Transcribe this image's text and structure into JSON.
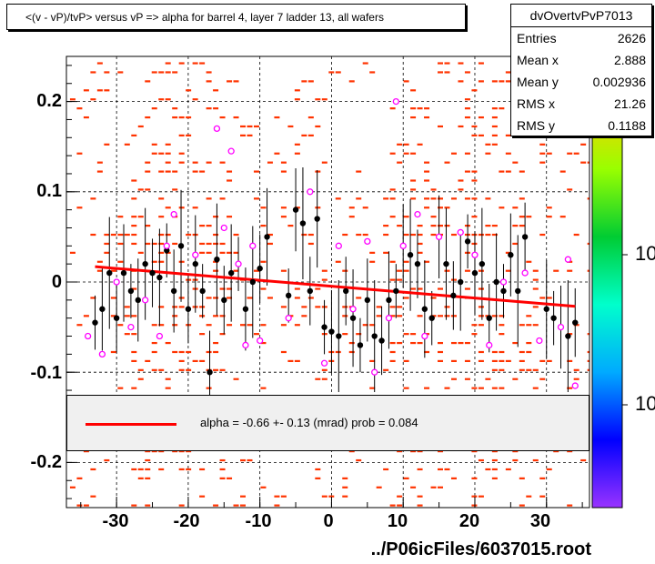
{
  "title": "<(v - vP)/tvP> versus   vP => alpha for barrel 4, layer 7 ladder 13, all wafers",
  "stats": {
    "name": "dvOvertvPvP7013",
    "rows": [
      {
        "label": "Entries",
        "value": "2626"
      },
      {
        "label": "Mean x",
        "value": "2.888"
      },
      {
        "label": "Mean y",
        "value": "0.002936"
      },
      {
        "label": "RMS x",
        "value": "21.26"
      },
      {
        "label": "RMS y",
        "value": "0.1188"
      }
    ]
  },
  "fit_legend": "alpha =   -0.66 +-  0.13 (mrad) prob = 0.084",
  "footer": "../P06icFiles/6037015.root",
  "colors": {
    "histogram": "#ff3300",
    "profile_markers": "#000000",
    "open_markers": "#ff00ff",
    "fit_line": "#ff0000"
  },
  "color_scale_labels": [
    "10",
    "10"
  ],
  "chart_data": {
    "type": "scatter",
    "title": "<(v - vP)/tvP> versus   vP => alpha for barrel 4, layer 7 ladder 13, all wafers",
    "xlim": [
      -37,
      36
    ],
    "ylim": [
      -0.25,
      0.25
    ],
    "x_ticks": [
      -30,
      -20,
      -10,
      0,
      10,
      20,
      30
    ],
    "x_tick_labels": [
      "-30",
      "-20",
      "-10",
      "0",
      "10",
      "20",
      "30"
    ],
    "y_ticks": [
      -0.2,
      -0.1,
      0,
      0.1,
      0.2
    ],
    "y_tick_labels": [
      "-0.2",
      "-0.1",
      "0",
      "0.1",
      "0.2"
    ],
    "grid": true,
    "fit": {
      "name": "alpha",
      "slope_mrad": -0.66,
      "error_mrad": 0.13,
      "prob": 0.084,
      "x": [
        -33,
        34
      ],
      "y": [
        0.017,
        -0.027
      ]
    },
    "series": [
      {
        "name": "profile",
        "x": [
          -33,
          -32,
          -31,
          -30,
          -29,
          -28,
          -27,
          -26,
          -25,
          -24,
          -23,
          -22,
          -21,
          -20,
          -19,
          -18,
          -17,
          -16,
          -15,
          -14,
          -13,
          -12,
          -11,
          -10,
          -9,
          -6,
          -5,
          -4,
          -3,
          -2,
          -1,
          0,
          1,
          2,
          3,
          4,
          5,
          6,
          7,
          8,
          9,
          10,
          11,
          12,
          13,
          14,
          15,
          16,
          17,
          18,
          19,
          20,
          21,
          22,
          23,
          24,
          25,
          26,
          27,
          30,
          31,
          32,
          33,
          34
        ],
        "y": [
          -0.045,
          -0.03,
          0.01,
          -0.04,
          0.01,
          -0.01,
          -0.02,
          0.02,
          0.01,
          0.005,
          0.035,
          -0.01,
          0.04,
          -0.03,
          0.02,
          -0.01,
          -0.1,
          0.025,
          -0.02,
          0.01,
          0.02,
          -0.03,
          0.0,
          0.015,
          0.05,
          -0.015,
          0.08,
          0.065,
          -0.01,
          0.07,
          -0.05,
          -0.055,
          -0.06,
          -0.01,
          -0.04,
          -0.07,
          -0.02,
          -0.06,
          -0.065,
          -0.02,
          -0.01,
          0.04,
          0.03,
          0.02,
          -0.03,
          -0.04,
          0.05,
          0.02,
          -0.015,
          0.0,
          0.045,
          0.01,
          0.02,
          -0.04,
          0.0,
          -0.01,
          0.03,
          -0.01,
          0.05,
          -0.03,
          -0.04,
          -0.05,
          -0.06,
          -0.045
        ]
      },
      {
        "name": "open",
        "x": [
          -34,
          -32,
          -30,
          -28,
          -26,
          -24,
          -23,
          -22,
          -19,
          -16,
          -15,
          -14,
          -13,
          -12,
          -11,
          -10,
          -6,
          -3,
          -1,
          1,
          3,
          5,
          6,
          8,
          9,
          10,
          12,
          13,
          15,
          18,
          20,
          22,
          24,
          27,
          29,
          32,
          33,
          34
        ],
        "y": [
          -0.06,
          -0.08,
          0.0,
          -0.05,
          -0.02,
          -0.06,
          0.04,
          0.075,
          0.03,
          0.17,
          0.06,
          0.145,
          0.02,
          -0.07,
          0.04,
          -0.065,
          -0.04,
          0.1,
          -0.09,
          0.04,
          -0.03,
          0.045,
          -0.1,
          -0.04,
          0.2,
          0.04,
          0.075,
          -0.06,
          0.05,
          0.055,
          0.03,
          -0.07,
          0.0,
          0.01,
          -0.065,
          -0.05,
          0.025,
          -0.115
        ]
      }
    ]
  }
}
